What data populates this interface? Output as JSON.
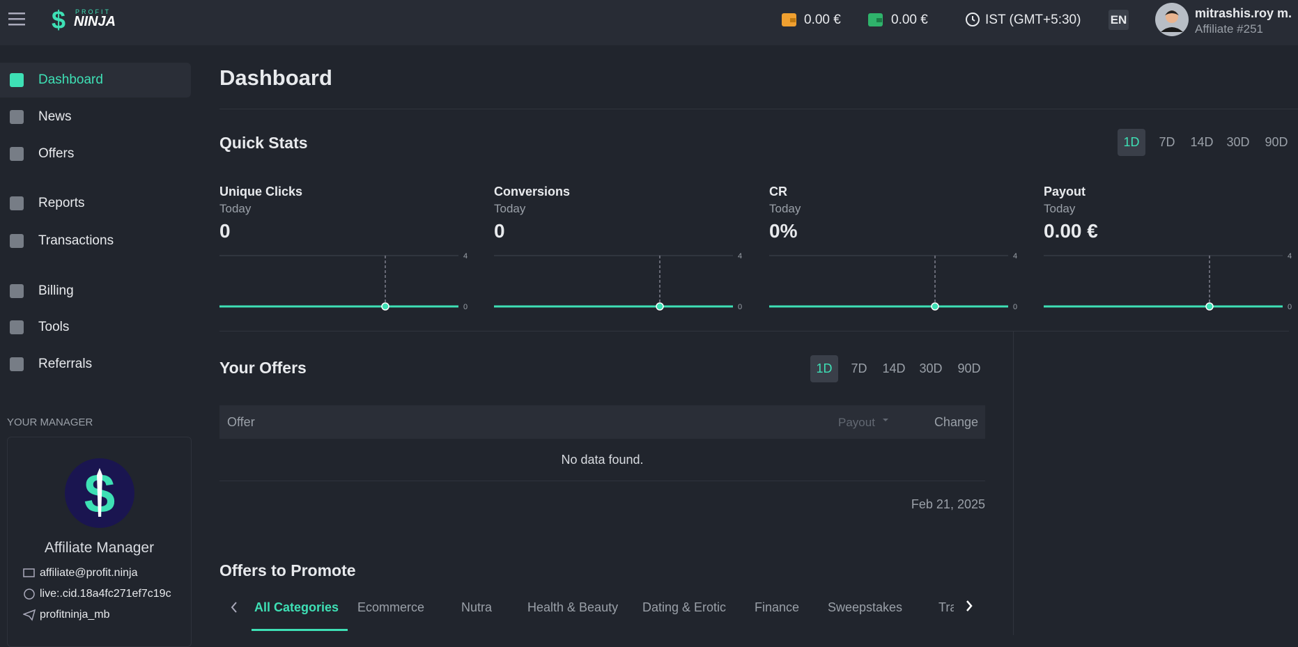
{
  "header": {
    "logo_top": "PROFIT",
    "logo": "NINJA",
    "wallet1": "0.00 €",
    "wallet2": "0.00 €",
    "timezone": "IST (GMT+5:30)",
    "language": "EN",
    "user_name": "mitrashis.roy m.",
    "user_id": "Affiliate #251"
  },
  "sidebar": {
    "items": [
      "Dashboard",
      "News",
      "Offers",
      "Reports",
      "Transactions",
      "Billing",
      "Tools",
      "Referrals"
    ],
    "active": 0,
    "manager_heading": "YOUR MANAGER",
    "manager": {
      "title": "Affiliate Manager",
      "email": "affiliate@profit.ninja",
      "skype": "live:.cid.18a4fc271ef7c19c",
      "telegram": "profitninja_mb"
    }
  },
  "page_title": "Dashboard",
  "quick_stats": {
    "title": "Quick Stats",
    "periods": [
      "1D",
      "7D",
      "14D",
      "30D",
      "90D"
    ],
    "active": 0,
    "stats": [
      {
        "label": "Unique Clicks",
        "period": "Today",
        "value": "0",
        "chart": {
          "ylim": [
            0,
            4
          ],
          "yticks": [
            0,
            4
          ],
          "values": [
            0
          ]
        }
      },
      {
        "label": "Conversions",
        "period": "Today",
        "value": "0",
        "chart": {
          "ylim": [
            0,
            4
          ],
          "yticks": [
            0,
            4
          ],
          "values": [
            0
          ]
        }
      },
      {
        "label": "CR",
        "period": "Today",
        "value": "0%",
        "chart": {
          "ylim": [
            0,
            4
          ],
          "yticks": [
            0,
            4
          ],
          "values": [
            0
          ]
        }
      },
      {
        "label": "Payout",
        "period": "Today",
        "value": "0.00 €",
        "chart": {
          "ylim": [
            0,
            4
          ],
          "yticks": [
            0,
            4
          ],
          "values": [
            0
          ]
        }
      }
    ]
  },
  "offers": {
    "title": "Your Offers",
    "periods": [
      "1D",
      "7D",
      "14D",
      "30D",
      "90D"
    ],
    "active": 0,
    "columns": [
      "Offer",
      "Payout",
      "Change"
    ],
    "empty": "No data found.",
    "date": "Feb 21, 2025"
  },
  "promote": {
    "title": "Offers to Promote",
    "categories": [
      "All Categories",
      "Ecommerce",
      "Nutra",
      "Health & Beauty",
      "Dating & Erotic",
      "Finance",
      "Sweepstakes",
      "Tra"
    ],
    "active": 0
  }
}
